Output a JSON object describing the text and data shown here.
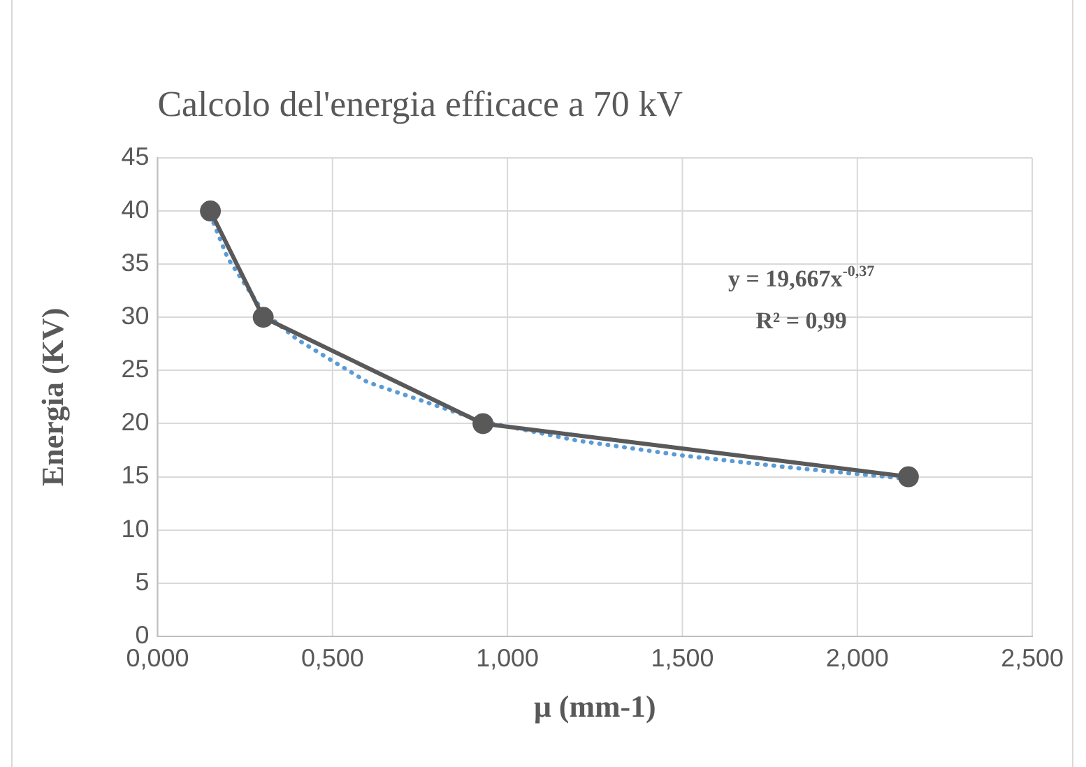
{
  "chart_data": {
    "type": "line",
    "title": "Calcolo del'energia efficace a 70 kV",
    "xlabel": "μ (mm-1)",
    "ylabel": "Energia (KV)",
    "series": [
      {
        "type": "line",
        "color": "#595959",
        "x": [
          0.151,
          0.302,
          0.93,
          2.146
        ],
        "values": [
          40,
          30,
          20,
          15
        ],
        "marker": "circle",
        "line_style": "solid"
      },
      {
        "type": "line",
        "color": "#5b9bd5",
        "x": [
          0.151,
          0.2,
          0.302,
          0.4,
          0.6,
          0.93,
          1.2,
          1.5,
          1.8,
          2.146
        ],
        "values": [
          39.6,
          35.6,
          30.5,
          27.9,
          23.9,
          20.2,
          18.4,
          17.0,
          15.9,
          14.8
        ],
        "marker": "none",
        "line_style": "dotted"
      }
    ],
    "annotations": [
      "y = 19,667x$^{-0,37}$",
      "R² = 0,99"
    ],
    "xlim": [
      0,
      2.5
    ],
    "xticks": [
      {
        "value": 0,
        "label": "0,000"
      },
      {
        "value": 0.5,
        "label": "0,500"
      },
      {
        "value": 1,
        "label": "1,000"
      },
      {
        "value": 1.5,
        "label": "1,500"
      },
      {
        "value": 2,
        "label": "2,000"
      },
      {
        "value": 2.5,
        "label": "2,500"
      }
    ],
    "ylim": [
      0,
      45
    ],
    "yticks": [
      0,
      5,
      10,
      15,
      20,
      25,
      30,
      35,
      40,
      45
    ],
    "grid": true,
    "legend": false
  }
}
